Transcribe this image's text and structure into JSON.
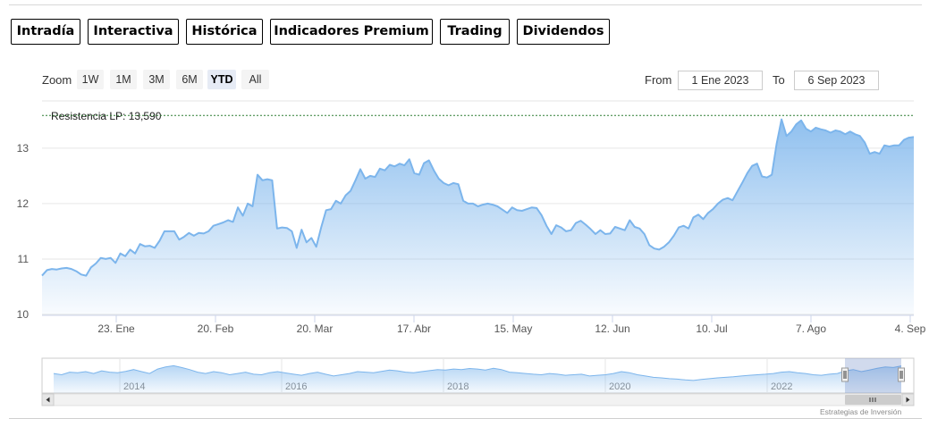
{
  "tabs": [
    {
      "label": "Intradía",
      "style": "purple"
    },
    {
      "label": "Interactiva",
      "style": "purple"
    },
    {
      "label": "Histórica",
      "style": "active"
    },
    {
      "label": "Indicadores Premium",
      "style": "pink"
    },
    {
      "label": "Trading",
      "style": "pink"
    },
    {
      "label": "Dividendos",
      "style": "purple"
    }
  ],
  "range_selector": {
    "zoom_label": "Zoom",
    "buttons": [
      "1W",
      "1M",
      "3M",
      "6M",
      "YTD",
      "All"
    ],
    "selected": "YTD",
    "from_label": "From",
    "from_value": "1 Ene 2023",
    "to_label": "To",
    "to_value": "6 Sep 2023"
  },
  "credits": "Estrategias de Inversión",
  "colors": {
    "line": "#7cb5ec",
    "area_top": "#7cb5ec",
    "plotline": "#2e7d32",
    "tab_purple": "#8a86b2",
    "tab_pink": "#e0828f"
  },
  "chart_data": {
    "type": "area",
    "title": "",
    "xlabel": "",
    "ylabel": "",
    "ylim": [
      10,
      13.9
    ],
    "y_ticks": [
      10,
      11,
      12,
      13
    ],
    "x_ticks": [
      "23. Ene",
      "20. Feb",
      "20. Mar",
      "17. Abr",
      "15. May",
      "12. Jun",
      "10. Jul",
      "7. Ago",
      "4. Sep"
    ],
    "plot_line": {
      "label": "Resistencia LP: 13,590",
      "value": 13.59
    },
    "series": [
      {
        "values": [
          10.7,
          10.8,
          10.82,
          10.81,
          10.83,
          10.84,
          10.82,
          10.78,
          10.72,
          10.7,
          10.85,
          10.92,
          11.02,
          11.0,
          11.02,
          10.93,
          11.1,
          11.05,
          11.17,
          11.1,
          11.27,
          11.23,
          11.24,
          11.2,
          11.33,
          11.5,
          11.5,
          11.5,
          11.35,
          11.4,
          11.47,
          11.42,
          11.47,
          11.46,
          11.5,
          11.6,
          11.63,
          11.66,
          11.7,
          11.67,
          11.93,
          11.78,
          12.0,
          11.95,
          12.52,
          12.42,
          12.44,
          12.42,
          11.55,
          11.57,
          11.56,
          11.5,
          11.2,
          11.53,
          11.3,
          11.38,
          11.22,
          11.57,
          11.88,
          11.9,
          12.05,
          12.0,
          12.15,
          12.23,
          12.42,
          12.62,
          12.45,
          12.5,
          12.48,
          12.63,
          12.6,
          12.7,
          12.67,
          12.72,
          12.69,
          12.8,
          12.55,
          12.52,
          12.73,
          12.78,
          12.6,
          12.45,
          12.37,
          12.33,
          12.37,
          12.35,
          12.05,
          12.0,
          12.0,
          11.95,
          11.98,
          12.0,
          11.98,
          11.95,
          11.89,
          11.83,
          11.93,
          11.88,
          11.87,
          11.9,
          11.93,
          11.92,
          11.79,
          11.6,
          11.45,
          11.61,
          11.57,
          11.5,
          11.52,
          11.65,
          11.69,
          11.62,
          11.54,
          11.45,
          11.52,
          11.45,
          11.46,
          11.58,
          11.55,
          11.52,
          11.7,
          11.58,
          11.55,
          11.45,
          11.25,
          11.19,
          11.17,
          11.22,
          11.3,
          11.42,
          11.57,
          11.6,
          11.55,
          11.75,
          11.8,
          11.72,
          11.83,
          11.9,
          12.0,
          12.07,
          12.1,
          12.06,
          12.22,
          12.38,
          12.55,
          12.68,
          12.72,
          12.49,
          12.47,
          12.52,
          13.08,
          13.52,
          13.22,
          13.3,
          13.43,
          13.5,
          13.35,
          13.3,
          13.37,
          13.34,
          13.32,
          13.28,
          13.32,
          13.3,
          13.25,
          13.3,
          13.25,
          13.22,
          13.1,
          12.9,
          12.93,
          12.9,
          13.05,
          13.03,
          13.05,
          13.05,
          13.15,
          13.19,
          13.2
        ]
      }
    ],
    "navigator": {
      "x_ticks": [
        "2014",
        "2016",
        "2018",
        "2020",
        "2022"
      ],
      "values": [
        0.55,
        0.5,
        0.6,
        0.58,
        0.62,
        0.55,
        0.65,
        0.6,
        0.58,
        0.63,
        0.7,
        0.62,
        0.55,
        0.72,
        0.8,
        0.85,
        0.78,
        0.7,
        0.6,
        0.55,
        0.62,
        0.58,
        0.5,
        0.55,
        0.6,
        0.52,
        0.5,
        0.58,
        0.62,
        0.57,
        0.52,
        0.48,
        0.55,
        0.6,
        0.52,
        0.45,
        0.5,
        0.55,
        0.62,
        0.6,
        0.58,
        0.63,
        0.68,
        0.65,
        0.6,
        0.58,
        0.62,
        0.66,
        0.7,
        0.68,
        0.72,
        0.7,
        0.74,
        0.72,
        0.68,
        0.75,
        0.7,
        0.6,
        0.58,
        0.55,
        0.52,
        0.5,
        0.55,
        0.52,
        0.48,
        0.5,
        0.52,
        0.45,
        0.48,
        0.5,
        0.55,
        0.62,
        0.58,
        0.5,
        0.45,
        0.4,
        0.38,
        0.35,
        0.33,
        0.3,
        0.28,
        0.32,
        0.35,
        0.38,
        0.4,
        0.42,
        0.45,
        0.48,
        0.5,
        0.52,
        0.55,
        0.6,
        0.62,
        0.58,
        0.55,
        0.5,
        0.48,
        0.52,
        0.55,
        0.65,
        0.7,
        0.62,
        0.68,
        0.75,
        0.8,
        0.78,
        0.84
      ]
    }
  }
}
